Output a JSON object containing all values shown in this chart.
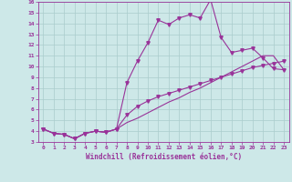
{
  "xlabel": "Windchill (Refroidissement éolien,°C)",
  "xlim": [
    -0.5,
    23.5
  ],
  "ylim": [
    3,
    16
  ],
  "xticks": [
    0,
    1,
    2,
    3,
    4,
    5,
    6,
    7,
    8,
    9,
    10,
    11,
    12,
    13,
    14,
    15,
    16,
    17,
    18,
    19,
    20,
    21,
    22,
    23
  ],
  "yticks": [
    3,
    4,
    5,
    6,
    7,
    8,
    9,
    10,
    11,
    12,
    13,
    14,
    15,
    16
  ],
  "bg_color": "#cde8e8",
  "line_color": "#993399",
  "grid_color": "#aacccc",
  "line1_x": [
    0,
    1,
    2,
    3,
    4,
    5,
    6,
    7,
    8,
    9,
    10,
    11,
    12,
    13,
    14,
    15,
    16,
    17,
    18,
    19,
    20,
    21,
    22,
    23
  ],
  "line1_y": [
    4.2,
    3.8,
    3.7,
    3.3,
    3.8,
    4.0,
    3.9,
    4.2,
    8.5,
    10.5,
    12.2,
    14.3,
    13.9,
    14.5,
    14.8,
    14.5,
    16.2,
    12.7,
    11.3,
    11.5,
    11.7,
    10.8,
    9.8,
    9.7
  ],
  "line2_x": [
    0,
    1,
    2,
    3,
    4,
    5,
    6,
    7,
    8,
    9,
    10,
    11,
    12,
    13,
    14,
    15,
    16,
    17,
    18,
    19,
    20,
    21,
    22,
    23
  ],
  "line2_y": [
    4.2,
    3.8,
    3.7,
    3.3,
    3.8,
    4.0,
    3.9,
    4.2,
    5.5,
    6.3,
    6.8,
    7.2,
    7.5,
    7.8,
    8.1,
    8.4,
    8.7,
    9.0,
    9.3,
    9.6,
    9.9,
    10.1,
    10.3,
    10.5
  ],
  "line3_x": [
    0,
    1,
    2,
    3,
    4,
    5,
    6,
    7,
    8,
    9,
    10,
    11,
    12,
    13,
    14,
    15,
    16,
    17,
    18,
    19,
    20,
    21,
    22,
    23
  ],
  "line3_y": [
    4.2,
    3.8,
    3.7,
    3.3,
    3.8,
    4.0,
    3.9,
    4.2,
    4.8,
    5.2,
    5.7,
    6.2,
    6.7,
    7.1,
    7.6,
    8.0,
    8.5,
    9.0,
    9.5,
    10.0,
    10.5,
    11.0,
    11.0,
    9.7
  ]
}
